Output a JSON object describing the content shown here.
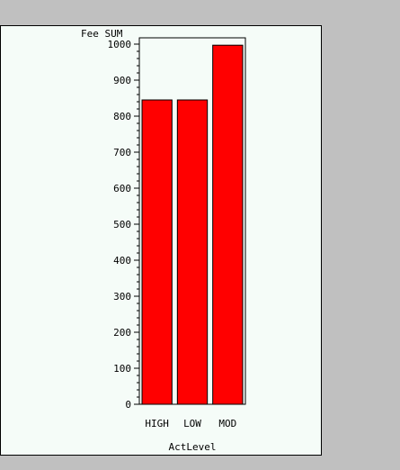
{
  "chart_data": {
    "type": "bar",
    "categories": [
      "HIGH",
      "LOW",
      "MOD"
    ],
    "values": [
      845,
      845,
      997
    ],
    "ylabel": "Fee SUM",
    "xlabel": "ActLevel",
    "ylim": [
      0,
      1000
    ],
    "yticks": [
      0,
      100,
      200,
      300,
      400,
      500,
      600,
      700,
      800,
      900,
      1000
    ],
    "minor_ticks_per_major": 5,
    "bar_color": "#ff0000",
    "grid": false,
    "legend": "none"
  }
}
